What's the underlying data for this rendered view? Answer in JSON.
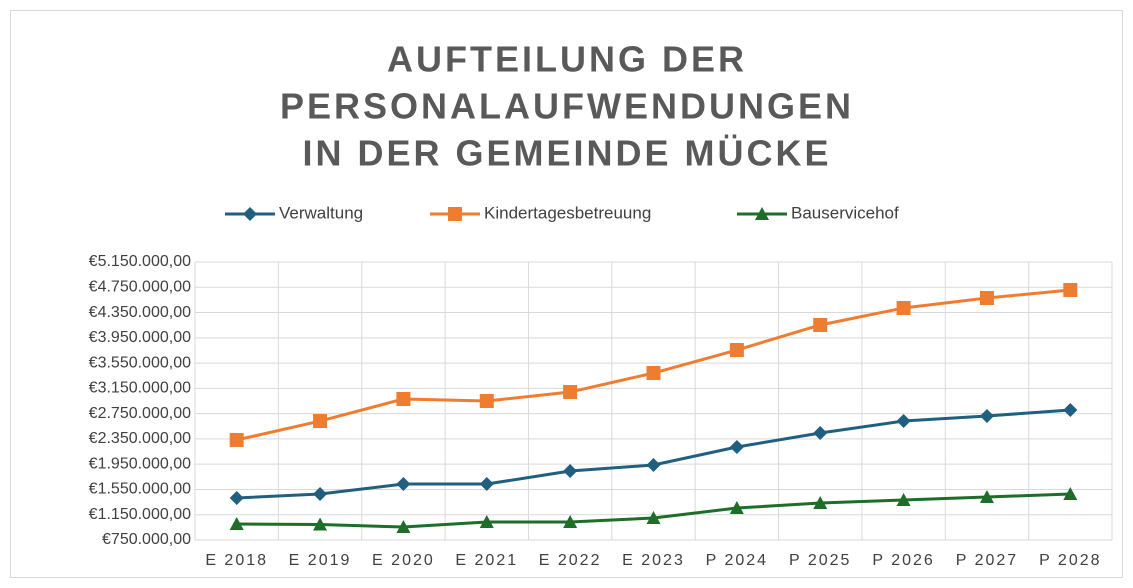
{
  "chart_data": {
    "type": "line",
    "title": [
      "AUFTEILUNG DER",
      "PERSONALAUFWENDUNGEN",
      "IN DER GEMEINDE MÜCKE"
    ],
    "categories": [
      "E 2018",
      "E 2019",
      "E 2020",
      "E 2021",
      "E 2022",
      "E 2023",
      "P 2024",
      "P 2025",
      "P 2026",
      "P 2027",
      "P 2028"
    ],
    "series": [
      {
        "name": "Verwaltung",
        "color": "#215f80",
        "marker": "diamond",
        "values": [
          1415000,
          1478000,
          1636000,
          1636000,
          1842000,
          1937000,
          2222000,
          2444000,
          2633000,
          2713000,
          2808000
        ]
      },
      {
        "name": "Kindertagesbetreuung",
        "color": "#ee7d31",
        "marker": "square",
        "values": [
          2333000,
          2633000,
          2982000,
          2950000,
          3092000,
          3393000,
          3757000,
          4153000,
          4422000,
          4580000,
          4707000
        ]
      },
      {
        "name": "Bauservicehof",
        "color": "#1e6e2a",
        "marker": "triangle",
        "values": [
          1003000,
          995000,
          956000,
          1035000,
          1035000,
          1098000,
          1256000,
          1336000,
          1383000,
          1431000,
          1478000
        ]
      }
    ],
    "ylim": [
      750000,
      5150000
    ],
    "yticks": [
      {
        "value": 750000,
        "label": "€750.000,00"
      },
      {
        "value": 1150000,
        "label": "€1.150.000,00"
      },
      {
        "value": 1550000,
        "label": "€1.550.000,00"
      },
      {
        "value": 1950000,
        "label": "€1.950.000,00"
      },
      {
        "value": 2350000,
        "label": "€2.350.000,00"
      },
      {
        "value": 2750000,
        "label": "€2.750.000,00"
      },
      {
        "value": 3150000,
        "label": "€3.150.000,00"
      },
      {
        "value": 3550000,
        "label": "€3.550.000,00"
      },
      {
        "value": 3950000,
        "label": "€3.950.000,00"
      },
      {
        "value": 4350000,
        "label": "€4.350.000,00"
      },
      {
        "value": 4750000,
        "label": "€4.750.000,00"
      },
      {
        "value": 5150000,
        "label": "€5.150.000,00"
      }
    ],
    "grid": true,
    "legend": "top"
  }
}
